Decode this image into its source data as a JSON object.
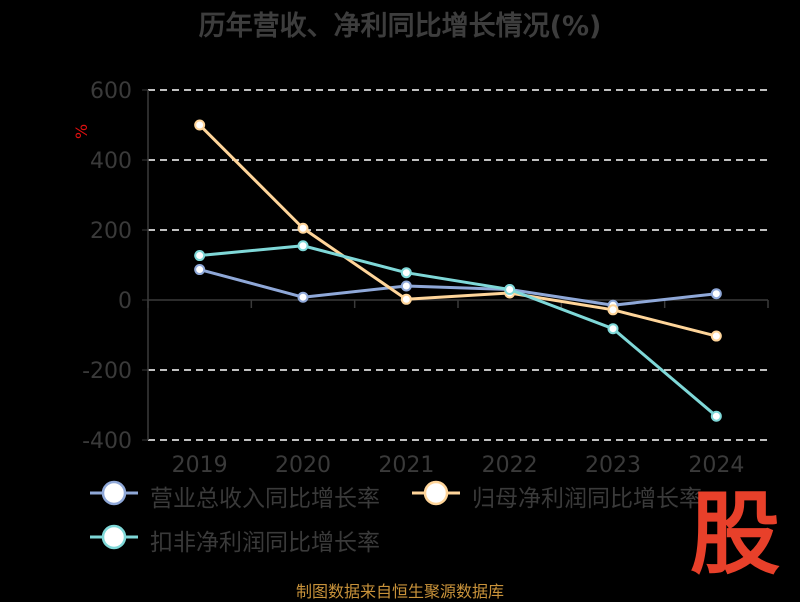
{
  "title": "历年营收、净利同比增长情况(%)",
  "footer": "制图数据来自恒生聚源数据库",
  "watermark": "股",
  "colors": {
    "revenue": "#8fa8d8",
    "net_profit": "#ffd59a",
    "deducted_net_profit": "#7fd8d8",
    "axis_text": "#3a3a3a",
    "grid": "#ffffff"
  },
  "chart_data": {
    "type": "line",
    "title": "历年营收、净利同比增长情况(%)",
    "xlabel": "",
    "ylabel": "%",
    "categories": [
      "2019",
      "2020",
      "2021",
      "2022",
      "2023",
      "2024"
    ],
    "ylim": [
      -400,
      600
    ],
    "yticks": [
      "600",
      "400",
      "200",
      "0",
      "-200",
      "-400"
    ],
    "grid": "horizontal dashed",
    "legend_position": "bottom",
    "series": [
      {
        "name": "营业总收入同比增长率",
        "values": [
          87,
          8,
          40,
          30,
          -15,
          18
        ]
      },
      {
        "name": "归母净利润同比增长率",
        "values": [
          500,
          205,
          2,
          20,
          -28,
          -103
        ]
      },
      {
        "name": "扣非净利润同比增长率",
        "values": [
          127,
          155,
          78,
          30,
          -82,
          -332
        ]
      }
    ]
  }
}
